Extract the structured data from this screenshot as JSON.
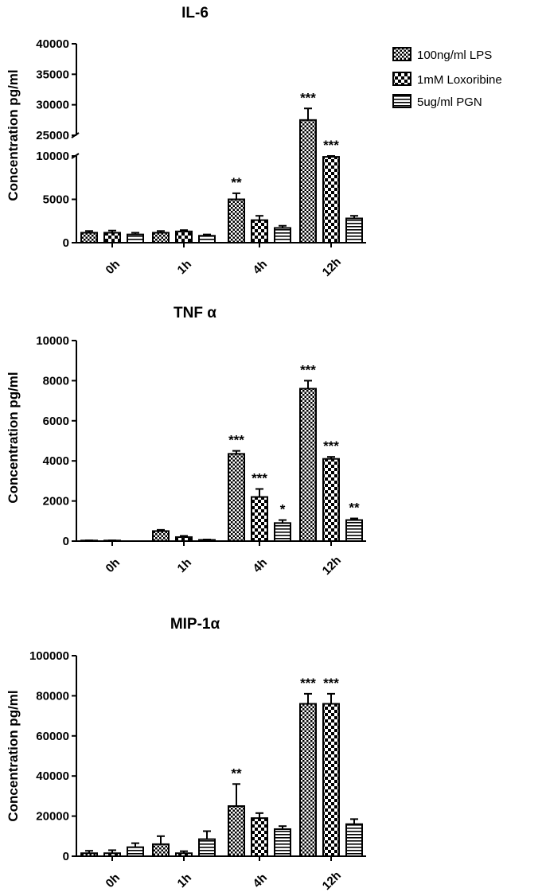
{
  "legend": [
    {
      "label": "100ng/ml LPS",
      "pattern": "checker-small"
    },
    {
      "label": "1mM Loxoribine",
      "pattern": "checker-large"
    },
    {
      "label": "5ug/ml PGN",
      "pattern": "horizontal-stripes"
    }
  ],
  "chart_data": [
    {
      "type": "bar",
      "title": "IL-6",
      "ylabel": "Concentration pg/ml",
      "xlabel": "",
      "categories": [
        "0h",
        "1h",
        "4h",
        "12h"
      ],
      "axis_break": {
        "lower_range": [
          0,
          10000
        ],
        "upper_range": [
          25000,
          40000
        ]
      },
      "lower_ticks": [
        "0",
        "5000",
        "10000"
      ],
      "upper_ticks": [
        "25000",
        "30000",
        "35000",
        "40000"
      ],
      "series": [
        {
          "name": "100ng/ml LPS",
          "values": [
            1150,
            1150,
            5000,
            27500
          ],
          "errors": [
            200,
            200,
            700,
            1900
          ],
          "sig": [
            "",
            "",
            "**",
            "***"
          ]
        },
        {
          "name": "1mM Loxoribine",
          "values": [
            1150,
            1300,
            2600,
            9900
          ],
          "errors": [
            250,
            150,
            500,
            400
          ],
          "sig": [
            "",
            "",
            "",
            "***"
          ]
        },
        {
          "name": "5ug/ml PGN",
          "values": [
            950,
            800,
            1700,
            2800
          ],
          "errors": [
            200,
            150,
            250,
            300
          ],
          "sig": [
            "",
            "",
            "",
            ""
          ]
        }
      ]
    },
    {
      "type": "bar",
      "title": "TNF α",
      "ylabel": "Concentration pg/ml",
      "xlabel": "",
      "categories": [
        "0h",
        "1h",
        "4h",
        "12h"
      ],
      "ylim": [
        0,
        10000
      ],
      "ticks": [
        "0",
        "2000",
        "4000",
        "6000",
        "8000",
        "10000"
      ],
      "series": [
        {
          "name": "100ng/ml LPS",
          "values": [
            30,
            500,
            4350,
            7600
          ],
          "errors": [
            10,
            60,
            150,
            400
          ],
          "sig": [
            "",
            "",
            "***",
            "***"
          ]
        },
        {
          "name": "1mM Loxoribine",
          "values": [
            30,
            200,
            2200,
            4100
          ],
          "errors": [
            10,
            60,
            400,
            100
          ],
          "sig": [
            "",
            "",
            "***",
            "***"
          ]
        },
        {
          "name": "5ug/ml PGN",
          "values": [
            0,
            60,
            900,
            1050
          ],
          "errors": [
            0,
            20,
            150,
            80
          ],
          "sig": [
            "",
            "",
            "*",
            "**"
          ]
        }
      ]
    },
    {
      "type": "bar",
      "title": "MIP-1α",
      "ylabel": "Concentration pg/ml",
      "xlabel": "",
      "categories": [
        "0h",
        "1h",
        "4h",
        "12h"
      ],
      "ylim": [
        0,
        100000
      ],
      "ticks": [
        "0",
        "20000",
        "40000",
        "60000",
        "80000",
        "100000"
      ],
      "series": [
        {
          "name": "100ng/ml LPS",
          "values": [
            1500,
            6000,
            25000,
            76000
          ],
          "errors": [
            1200,
            4000,
            11000,
            5000
          ],
          "sig": [
            "",
            "",
            "**",
            "***"
          ]
        },
        {
          "name": "1mM Loxoribine",
          "values": [
            1500,
            1500,
            19000,
            76000
          ],
          "errors": [
            1500,
            1000,
            2500,
            5000
          ],
          "sig": [
            "",
            "",
            "",
            "***"
          ]
        },
        {
          "name": "5ug/ml PGN",
          "values": [
            4500,
            8500,
            13500,
            16000
          ],
          "errors": [
            2000,
            4000,
            1500,
            2500
          ],
          "sig": [
            "",
            "",
            "",
            ""
          ]
        }
      ]
    }
  ]
}
